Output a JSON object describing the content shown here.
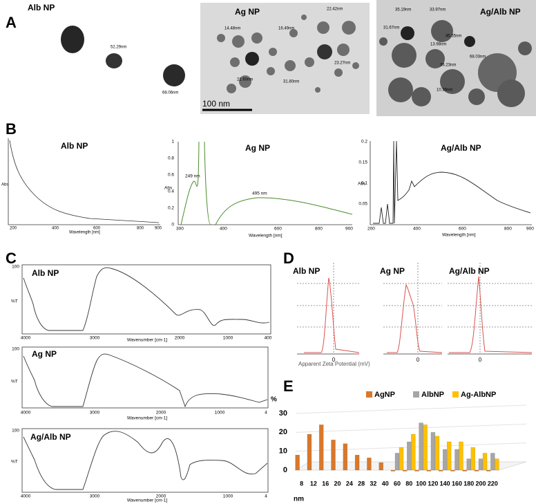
{
  "panels": {
    "A": {
      "letter": "A",
      "images": [
        {
          "title": "Alb NP",
          "labels": [
            "52.29nm",
            "68.06nm"
          ]
        },
        {
          "title": "Ag NP",
          "labels": [
            "14.48nm",
            "16.49nm",
            "22.42nm",
            "23.27nm",
            "31.80nm",
            "21.60nm"
          ],
          "scale_bar": "100 nm"
        },
        {
          "title": "Ag/Alb NP",
          "labels": [
            "35.19nm",
            "33.97nm",
            "31.67nm",
            "13.98nm",
            "45.55nm",
            "36.23nm",
            "68.03nm",
            "10.39nm"
          ]
        }
      ]
    },
    "B": {
      "letter": "B",
      "plots": [
        {
          "title": "Alb NP",
          "ylabel": "Abs",
          "xlabel": "Wavelength [nm]",
          "xticks": [
            "200",
            "400",
            "600",
            "800",
            "900"
          ]
        },
        {
          "title": "Ag NP",
          "ylabel": "Abs",
          "xlabel": "Wavelength [nm]",
          "xticks": [
            "300",
            "400",
            "600",
            "800",
            "900"
          ],
          "yticks": [
            "0",
            "0.2",
            "0.4",
            "0.6",
            "0.8",
            "1"
          ],
          "annotations": [
            "249 nm",
            "495 nm"
          ]
        },
        {
          "title": "Ag/Alb NP",
          "ylabel": "Abs",
          "xlabel": "Wavelength [nm]",
          "xticks": [
            "200",
            "400",
            "600",
            "800",
            "900"
          ],
          "yticks": [
            "0.05",
            "0.1",
            "0.15",
            "0.2"
          ]
        }
      ]
    },
    "C": {
      "letter": "C",
      "plots": [
        {
          "title": "Alb NP",
          "ylabel": "%T",
          "ytop": "100",
          "xlabel": "Wavenumber [cm-1]",
          "xticks": [
            "4000",
            "3000",
            "2000",
            "1000",
            "400"
          ]
        },
        {
          "title": "Ag NP",
          "ylabel": "%T",
          "ytop": "100",
          "xlabel": "Wavenumber [cm-1]",
          "xticks": [
            "4000",
            "3000",
            "2000",
            "1000",
            "4"
          ]
        },
        {
          "title": "Ag/Alb NP",
          "ylabel": "%T",
          "ytop": "100",
          "xlabel": "Wavenumber [cm-1]",
          "xticks": [
            "4000",
            "3000",
            "2000",
            "1000",
            "4"
          ]
        }
      ]
    },
    "D": {
      "letter": "D",
      "titles": [
        "Alb NP",
        "Ag NP",
        "Ag/Alb NP"
      ],
      "zero": "0",
      "xlabel": "Apparent Zeta Potential (mV)"
    },
    "E": {
      "letter": "E"
    }
  },
  "chart_data": {
    "type": "bar",
    "xlabel": "nm",
    "ylabel": "%",
    "categories": [
      "8",
      "12",
      "16",
      "20",
      "24",
      "28",
      "32",
      "40",
      "60",
      "80",
      "100",
      "120",
      "140",
      "160",
      "180",
      "200",
      "220"
    ],
    "series": [
      {
        "name": "AgNP",
        "color": "#d9782b",
        "values": [
          8,
          19,
          24,
          16,
          14,
          8,
          6.5,
          4,
          0,
          0,
          0,
          0,
          0,
          0,
          0,
          0,
          0
        ]
      },
      {
        "name": "AlbNP",
        "color": "#a6a6a6",
        "values": [
          null,
          null,
          null,
          null,
          null,
          null,
          null,
          null,
          9,
          15,
          25,
          20,
          11,
          11,
          6,
          6,
          9
        ]
      },
      {
        "name": "Ag-AlbNP",
        "color": "#ffc000",
        "values": [
          null,
          null,
          null,
          null,
          null,
          null,
          null,
          null,
          12,
          19,
          24,
          18,
          15,
          15,
          12,
          9,
          6
        ]
      }
    ],
    "ylim": [
      0,
      30
    ],
    "yticks": [
      0,
      10,
      20,
      30
    ],
    "grid": true
  }
}
